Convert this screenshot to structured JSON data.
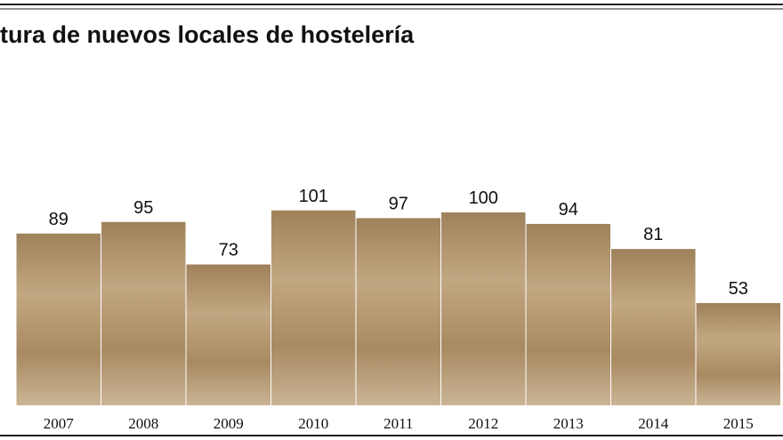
{
  "chart_data": {
    "type": "bar",
    "title": "tura de nuevos locales de hostelería",
    "categories": [
      "2007",
      "2008",
      "2009",
      "2010",
      "2011",
      "2012",
      "2013",
      "2014",
      "2015"
    ],
    "values": [
      89,
      95,
      73,
      101,
      97,
      100,
      94,
      81,
      53
    ],
    "color": "#b89d76",
    "ylim": [
      0,
      164
    ]
  }
}
